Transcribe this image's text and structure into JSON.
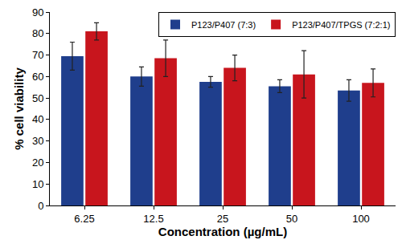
{
  "chart_data": {
    "type": "bar",
    "x_label": "Concentration (µg/mL)",
    "y_label": "% cell viability",
    "categories": [
      "6.25",
      "12.5",
      "25",
      "50",
      "100"
    ],
    "series": [
      {
        "name": "P123/P407 (7:3)",
        "color": "#1f3e8c",
        "values": [
          69.5,
          60,
          57.5,
          55.5,
          53.5
        ],
        "errors": [
          6.5,
          4.5,
          2.5,
          3,
          5
        ]
      },
      {
        "name": "P123/P407/TPGS (7:2:1)",
        "color": "#c8151d",
        "values": [
          81,
          68.5,
          64,
          61,
          57
        ],
        "errors": [
          4,
          8.5,
          6,
          11,
          6.5
        ]
      }
    ],
    "ylim": [
      0,
      90
    ],
    "yticks": [
      0,
      10,
      20,
      30,
      40,
      50,
      60,
      70,
      80,
      90
    ],
    "grid": false,
    "legend": "top right"
  }
}
